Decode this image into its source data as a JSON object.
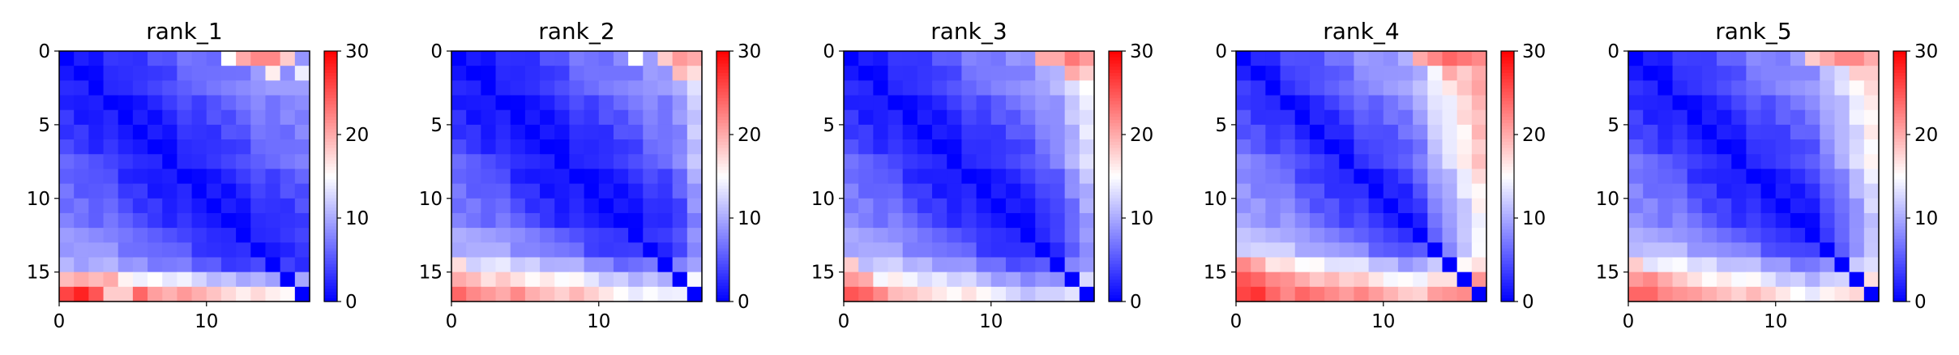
{
  "chart_data": [
    {
      "type": "heatmap",
      "title": "rank_1",
      "size": 17,
      "gradient": [
        [
          0,
          0.08
        ],
        [
          2,
          0.1
        ],
        [
          8,
          0.4
        ],
        [
          12,
          0.55
        ]
      ],
      "row_offset": [
        0,
        0,
        0,
        0,
        0,
        0,
        0,
        0,
        0,
        0,
        0,
        0,
        0,
        1,
        2,
        8,
        14
      ],
      "col_offset": [
        0,
        0,
        0,
        0,
        0,
        0,
        0,
        0,
        0,
        0,
        0,
        0,
        0,
        0,
        0,
        0,
        0
      ],
      "bottom_left_peaks": [
        [
          16,
          0,
          26
        ],
        [
          16,
          1,
          28
        ],
        [
          16,
          2,
          25
        ],
        [
          16,
          3,
          18
        ],
        [
          16,
          4,
          18
        ],
        [
          16,
          5,
          24
        ],
        [
          15,
          0,
          19
        ],
        [
          15,
          1,
          20
        ],
        [
          15,
          2,
          19
        ],
        [
          15,
          3,
          20
        ]
      ],
      "top_right_peaks": [
        [
          0,
          12,
          20
        ],
        [
          0,
          13,
          22
        ],
        [
          0,
          14,
          22
        ],
        [
          0,
          15,
          18
        ],
        [
          0,
          11,
          15
        ],
        [
          1,
          14,
          16
        ],
        [
          1,
          16,
          14
        ]
      ],
      "xticks": [
        0,
        10
      ],
      "yticks": [
        0,
        5,
        10,
        15
      ],
      "xlim": [
        0,
        17
      ],
      "ylim": [
        0,
        17
      ],
      "colorbar": {
        "ticks": [
          0,
          10,
          20,
          30
        ],
        "min": 0,
        "max": 30,
        "center": 15
      }
    },
    {
      "type": "heatmap",
      "title": "rank_2",
      "size": 17,
      "gradient": [
        [
          0,
          0.05
        ],
        [
          3,
          0.12
        ],
        [
          8,
          0.42
        ],
        [
          12,
          0.55
        ]
      ],
      "row_offset": [
        0,
        0,
        0,
        0,
        0,
        0,
        0,
        0,
        0,
        0,
        0,
        0,
        1,
        2,
        5,
        9,
        12
      ],
      "col_offset": [
        0,
        0,
        0,
        0,
        0,
        0,
        0,
        0,
        0,
        0,
        0,
        0,
        0,
        0,
        0,
        1,
        4
      ],
      "bottom_left_peaks": [
        [
          16,
          0,
          24
        ],
        [
          16,
          1,
          22
        ],
        [
          16,
          2,
          21
        ],
        [
          16,
          3,
          20
        ],
        [
          16,
          4,
          22
        ],
        [
          15,
          0,
          20
        ],
        [
          15,
          1,
          19
        ],
        [
          14,
          0,
          17
        ]
      ],
      "top_right_peaks": [
        [
          0,
          14,
          18
        ],
        [
          0,
          15,
          21
        ],
        [
          0,
          16,
          20
        ],
        [
          1,
          15,
          19
        ],
        [
          1,
          16,
          17
        ],
        [
          0,
          12,
          15
        ]
      ],
      "xticks": [
        0,
        10
      ],
      "yticks": [
        0,
        5,
        10,
        15
      ],
      "xlim": [
        0,
        17
      ],
      "ylim": [
        0,
        17
      ],
      "colorbar": {
        "ticks": [
          0,
          10,
          20,
          30
        ],
        "min": 0,
        "max": 30,
        "center": 15
      }
    },
    {
      "type": "heatmap",
      "title": "rank_3",
      "size": 17,
      "gradient": [
        [
          0,
          0.06
        ],
        [
          3,
          0.15
        ],
        [
          8,
          0.45
        ],
        [
          12,
          0.6
        ]
      ],
      "row_offset": [
        0,
        0,
        0,
        0,
        0,
        0,
        0,
        0,
        0,
        0,
        0,
        0,
        0,
        1,
        3,
        6,
        9
      ],
      "col_offset": [
        0,
        0,
        0,
        0,
        0,
        0,
        0,
        0,
        0,
        0,
        0,
        0,
        0,
        0,
        1,
        3,
        5
      ],
      "bottom_left_peaks": [
        [
          16,
          0,
          25
        ],
        [
          16,
          1,
          24
        ],
        [
          16,
          2,
          22
        ],
        [
          15,
          0,
          21
        ],
        [
          15,
          1,
          20
        ],
        [
          14,
          0,
          18
        ]
      ],
      "top_right_peaks": [
        [
          0,
          13,
          20
        ],
        [
          0,
          14,
          20
        ],
        [
          0,
          15,
          23
        ],
        [
          0,
          16,
          21
        ],
        [
          1,
          15,
          20
        ],
        [
          1,
          16,
          18
        ]
      ],
      "xticks": [
        0,
        10
      ],
      "yticks": [
        0,
        5,
        10,
        15
      ],
      "xlim": [
        0,
        17
      ],
      "ylim": [
        0,
        17
      ],
      "colorbar": {
        "ticks": [
          0,
          10,
          20,
          30
        ],
        "min": 0,
        "max": 30,
        "center": 15
      }
    },
    {
      "type": "heatmap",
      "title": "rank_4",
      "size": 17,
      "gradient": [
        [
          0,
          0.06
        ],
        [
          3,
          0.25
        ],
        [
          8,
          0.55
        ],
        [
          12,
          0.7
        ]
      ],
      "row_offset": [
        0,
        0,
        0,
        0,
        0,
        0,
        0,
        0,
        0,
        0,
        0,
        0,
        0,
        2,
        6,
        10,
        13
      ],
      "col_offset": [
        0,
        0,
        0,
        0,
        0,
        0,
        0,
        0,
        0,
        0,
        0,
        0,
        1,
        3,
        5,
        7,
        9
      ],
      "bottom_left_peaks": [
        [
          16,
          0,
          26
        ],
        [
          16,
          1,
          27
        ],
        [
          16,
          2,
          24
        ],
        [
          16,
          3,
          22
        ],
        [
          15,
          0,
          25
        ],
        [
          15,
          1,
          24
        ],
        [
          15,
          2,
          22
        ],
        [
          14,
          0,
          22
        ],
        [
          14,
          1,
          20
        ]
      ],
      "top_right_peaks": [
        [
          0,
          12,
          20
        ],
        [
          0,
          13,
          22
        ],
        [
          0,
          14,
          24
        ],
        [
          0,
          15,
          23
        ],
        [
          0,
          16,
          22
        ],
        [
          1,
          14,
          20
        ],
        [
          1,
          15,
          18
        ],
        [
          1,
          16,
          20
        ]
      ],
      "xticks": [
        0,
        10
      ],
      "yticks": [
        0,
        5,
        10,
        15
      ],
      "xlim": [
        0,
        17
      ],
      "ylim": [
        0,
        17
      ],
      "colorbar": {
        "ticks": [
          0,
          10,
          20,
          30
        ],
        "min": 0,
        "max": 30,
        "center": 15
      }
    },
    {
      "type": "heatmap",
      "title": "rank_5",
      "size": 17,
      "gradient": [
        [
          0,
          0.05
        ],
        [
          3,
          0.18
        ],
        [
          8,
          0.48
        ],
        [
          12,
          0.62
        ]
      ],
      "row_offset": [
        0,
        0,
        0,
        0,
        0,
        0,
        0,
        0,
        0,
        0,
        0,
        0,
        0,
        2,
        5,
        8,
        11
      ],
      "col_offset": [
        0,
        0,
        0,
        0,
        0,
        0,
        0,
        0,
        0,
        0,
        0,
        0,
        0,
        1,
        3,
        5,
        7
      ],
      "bottom_left_peaks": [
        [
          16,
          0,
          24
        ],
        [
          16,
          1,
          24
        ],
        [
          16,
          2,
          22
        ],
        [
          15,
          0,
          21
        ],
        [
          15,
          1,
          22
        ],
        [
          15,
          2,
          20
        ],
        [
          14,
          0,
          18
        ]
      ],
      "top_right_peaks": [
        [
          0,
          12,
          18
        ],
        [
          0,
          13,
          20
        ],
        [
          0,
          14,
          22
        ],
        [
          0,
          15,
          22
        ],
        [
          0,
          16,
          20
        ],
        [
          1,
          15,
          18
        ],
        [
          1,
          16,
          18
        ]
      ],
      "xticks": [
        0,
        10
      ],
      "yticks": [
        0,
        5,
        10,
        15
      ],
      "xlim": [
        0,
        17
      ],
      "ylim": [
        0,
        17
      ],
      "colorbar": {
        "ticks": [
          0,
          10,
          20,
          30
        ],
        "min": 0,
        "max": 30,
        "center": 15
      }
    }
  ],
  "colors": {
    "low": "#0000ff",
    "mid": "#ffffff",
    "high": "#ff0000",
    "axis": "#000000"
  }
}
